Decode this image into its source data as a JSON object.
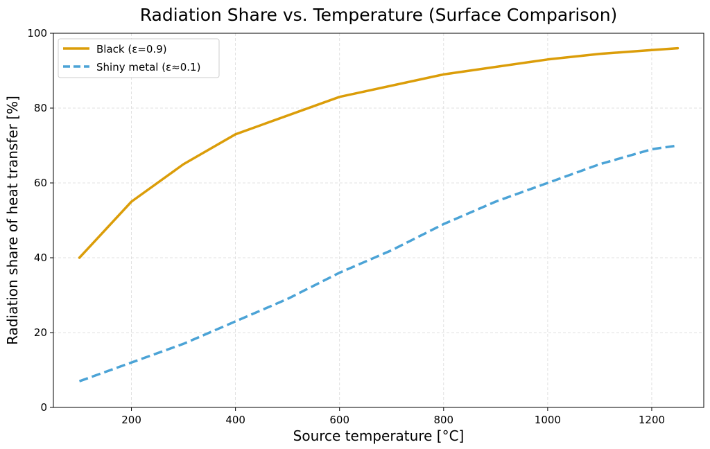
{
  "chart_data": {
    "type": "line",
    "title": "Radiation Share vs. Temperature (Surface Comparison)",
    "xlabel": "Source temperature [°C]",
    "ylabel": "Radiation share of heat transfer [%]",
    "xlim": [
      50,
      1300
    ],
    "ylim": [
      0,
      100
    ],
    "xticks": [
      200,
      400,
      600,
      800,
      1000,
      1200
    ],
    "yticks": [
      0,
      20,
      40,
      60,
      80,
      100
    ],
    "grid": true,
    "legend": "top-left",
    "series": [
      {
        "name": "Black (ε=0.9)",
        "color": "#DB9D09",
        "style": "solid",
        "x": [
          100,
          200,
          300,
          400,
          600,
          800,
          1000,
          1100,
          1200,
          1250
        ],
        "y": [
          40,
          55,
          65,
          73,
          83,
          89,
          93,
          94.5,
          95.5,
          96
        ]
      },
      {
        "name": "Shiny metal (ε≈0.1)",
        "color": "#4BA3D6",
        "style": "dashed",
        "x": [
          100,
          200,
          300,
          400,
          500,
          600,
          700,
          800,
          900,
          1000,
          1100,
          1200,
          1250
        ],
        "y": [
          7,
          12,
          17,
          23,
          29,
          36,
          42,
          49,
          55,
          60,
          65,
          69,
          70
        ]
      }
    ]
  }
}
